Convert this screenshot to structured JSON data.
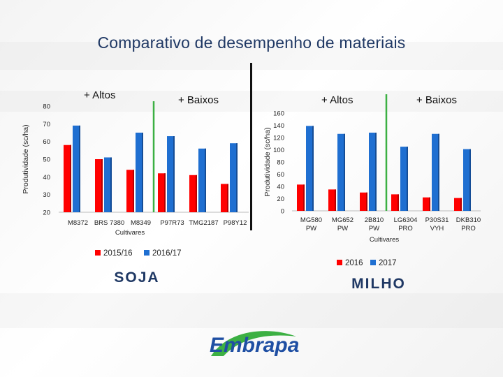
{
  "title": "Comparativo de desempenho de materiais",
  "colors": {
    "series_a": "#ff0000",
    "series_b": "#1f6fd1",
    "divider_green": "#3cb043",
    "title": "#1f3864"
  },
  "logo_text": "Embrapa",
  "chart_data": [
    {
      "type": "bar",
      "crop_label": "SOJA",
      "ylabel": "Produtividade (sc/ha)",
      "xlabel": "Cultivares",
      "ylim": [
        20,
        80
      ],
      "yticks": [
        "20",
        "30",
        "40",
        "50",
        "60",
        "70",
        "80"
      ],
      "categories": [
        "M8372",
        "BRS 7380",
        "M8349",
        "P97R73",
        "TMG2187",
        "P98Y12"
      ],
      "series": [
        {
          "name": "2015/16",
          "values": [
            58,
            50,
            44,
            42,
            41,
            36
          ]
        },
        {
          "name": "2016/17",
          "values": [
            69,
            51,
            65,
            63,
            56,
            59
          ]
        }
      ],
      "annotations": {
        "left": "+ Altos",
        "right": "+ Baixos"
      }
    },
    {
      "type": "bar",
      "crop_label": "MILHO",
      "ylabel": "Produtividade (sc/ha)",
      "xlabel": "Cultivares",
      "ylim": [
        0,
        160
      ],
      "yticks": [
        "0",
        "20",
        "40",
        "60",
        "80",
        "100",
        "120",
        "140",
        "160"
      ],
      "categories": [
        "MG580 PW",
        "MG652 PW",
        "2B810 PW",
        "LG6304 PRO",
        "P30S31 VYH",
        "DKB310 PRO"
      ],
      "series": [
        {
          "name": "2016",
          "values": [
            43,
            35,
            30,
            27,
            22,
            21
          ]
        },
        {
          "name": "2017",
          "values": [
            139,
            126,
            128,
            105,
            126,
            101
          ]
        }
      ],
      "annotations": {
        "left": "+ Altos",
        "right": "+ Baixos"
      }
    }
  ]
}
